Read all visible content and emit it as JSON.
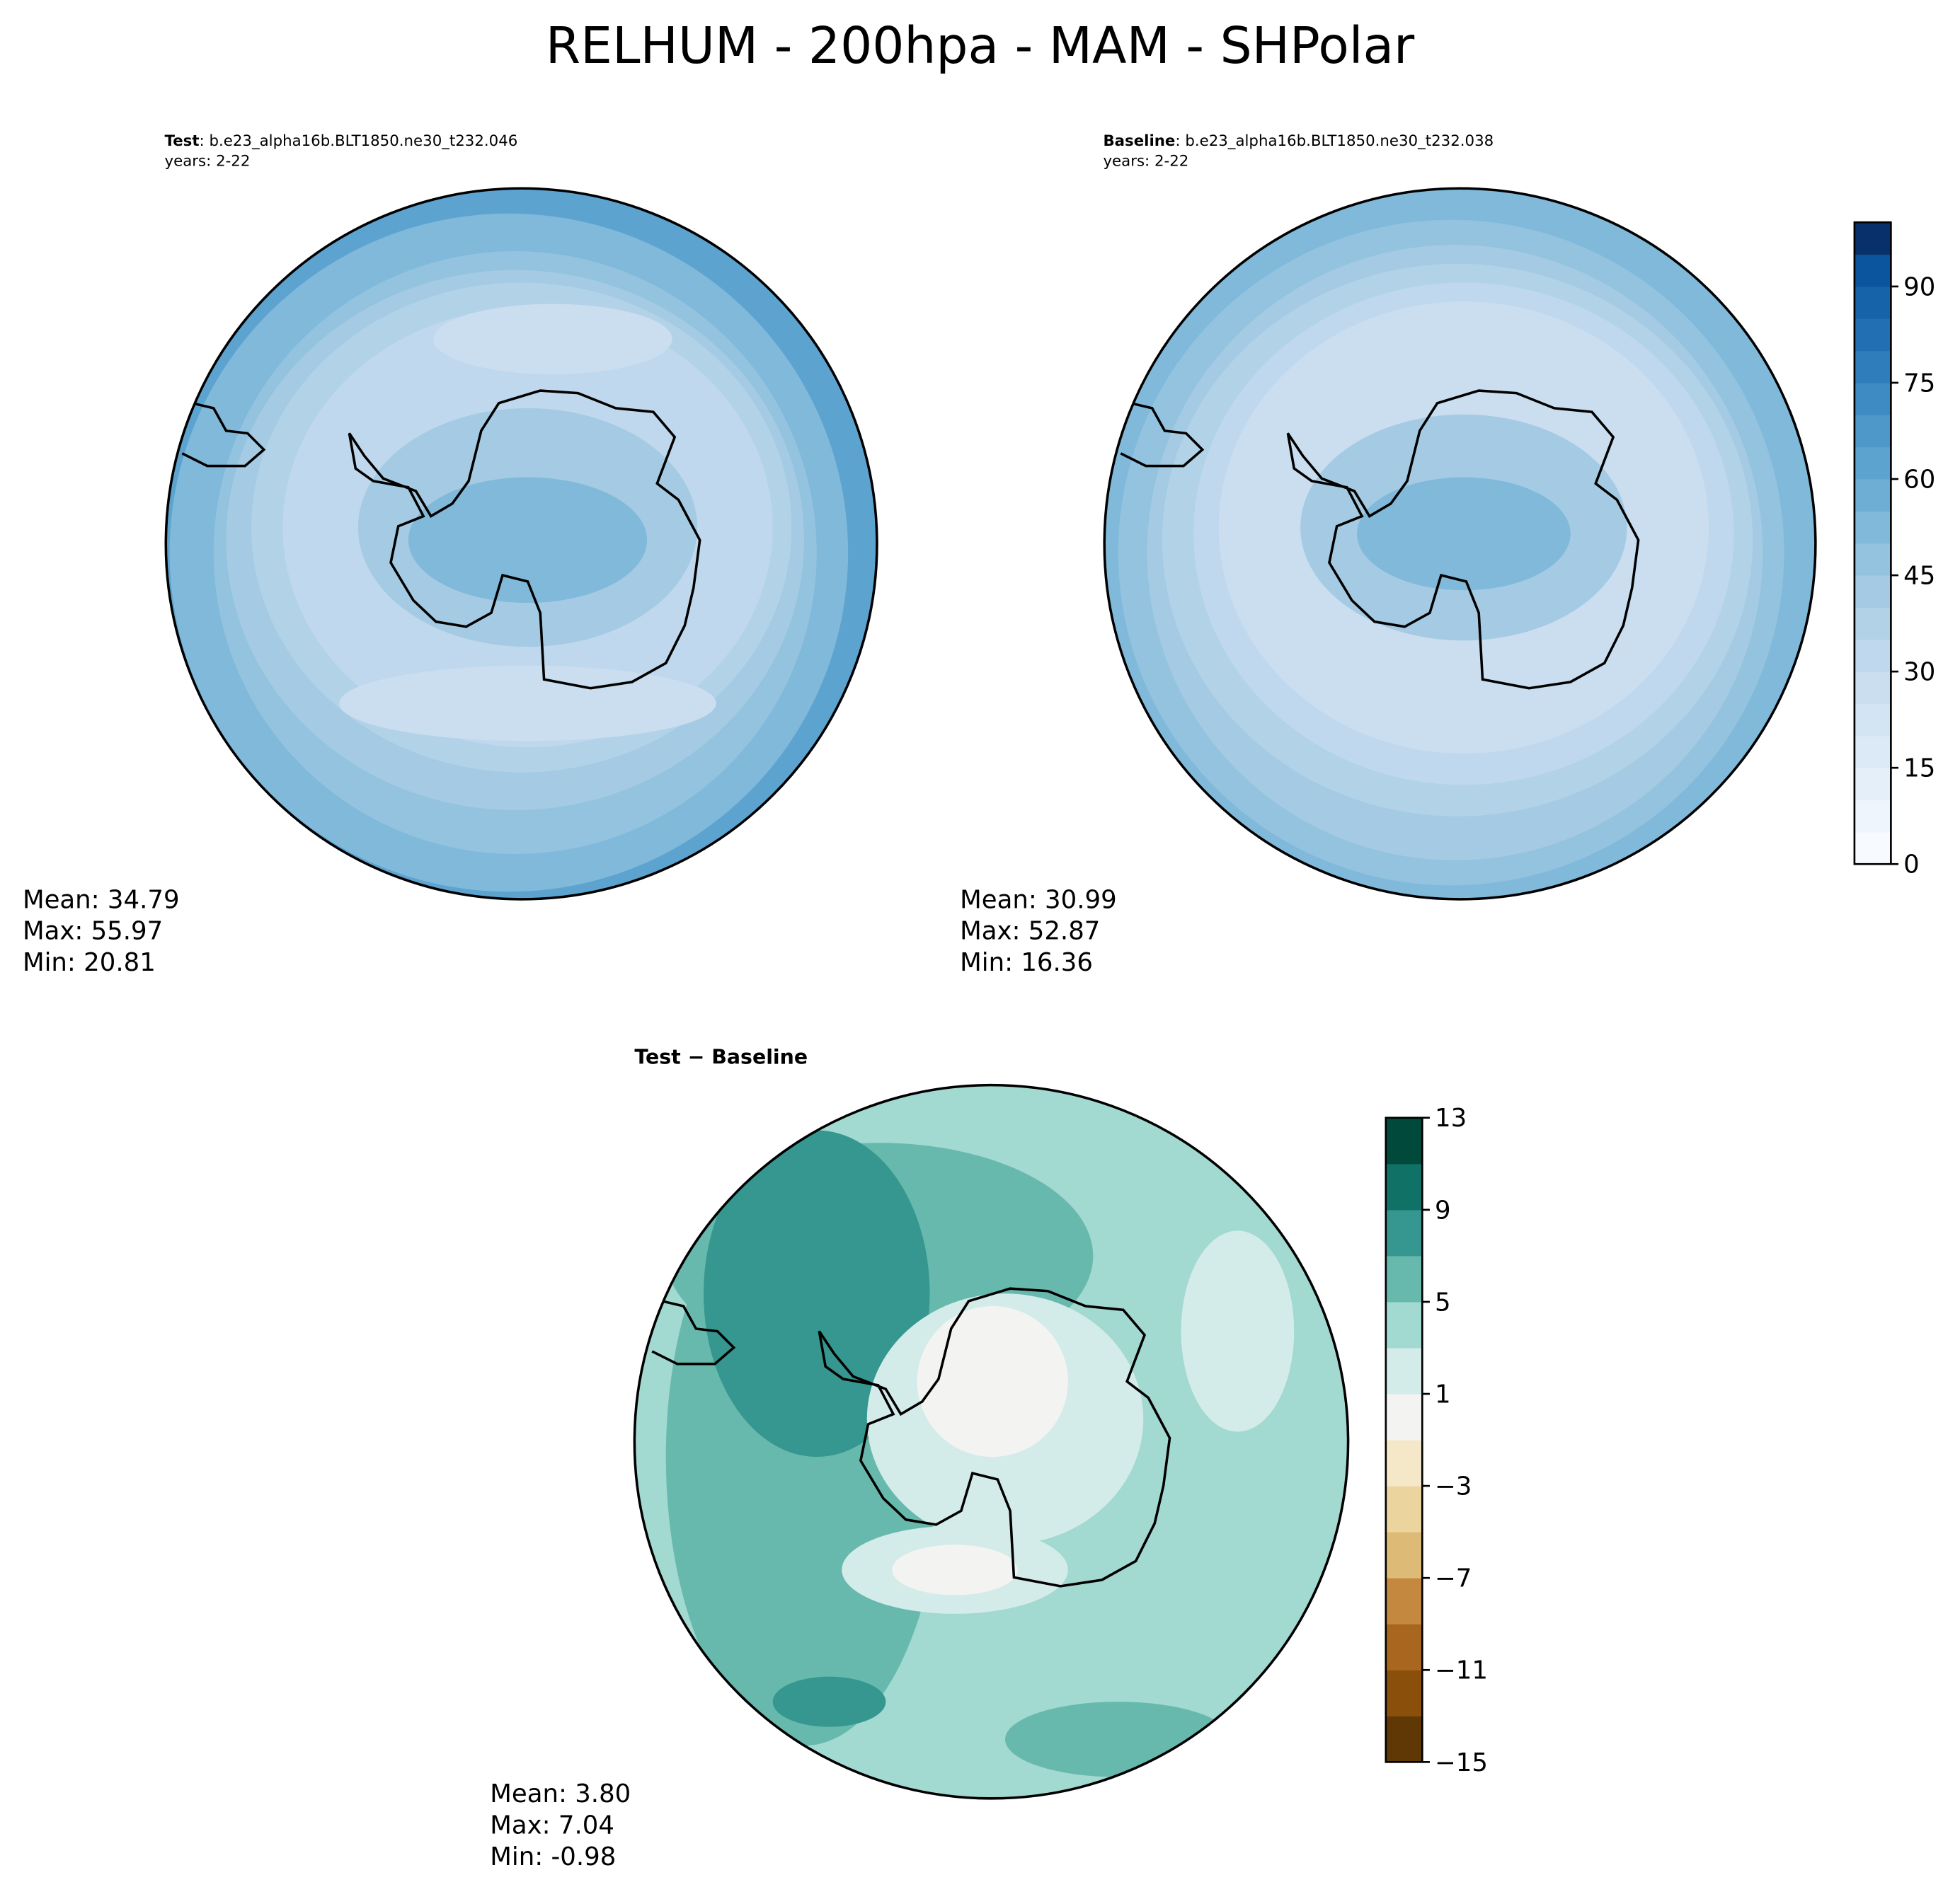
{
  "title": "RELHUM - 200hpa - MAM - SHPolar",
  "panels": [
    {
      "label": "Test",
      "case": ": b.e23_alpha16b.BLT1850.ne30_t232.046",
      "years": "years: 2-22",
      "stats": [
        "Mean: 34.79",
        "Max: 55.97",
        "Min: 20.81"
      ]
    },
    {
      "label": "Baseline",
      "case": ": b.e23_alpha16b.BLT1850.ne30_t232.038",
      "years": "years: 2-22",
      "stats": [
        "Mean: 30.99",
        "Max: 52.87",
        "Min: 16.36"
      ]
    },
    {
      "label": "Test − Baseline",
      "stats": [
        "Mean:  3.80",
        "Max:  7.04",
        "Min: -0.98"
      ]
    }
  ],
  "colorbars": [
    {
      "range": [
        0,
        100
      ],
      "ticks": [
        0,
        15,
        30,
        45,
        60,
        75,
        90
      ],
      "colors": [
        "#f7fbff",
        "#eef5fc",
        "#e5eff9",
        "#dce9f6",
        "#d3e4f3",
        "#cadef0",
        "#bfd8ed",
        "#b2d2e8",
        "#a4cbe3",
        "#93c3df",
        "#80b9da",
        "#6eaed5",
        "#5da3d0",
        "#4d97c9",
        "#3e8ac2",
        "#2f7dbb",
        "#2270b3",
        "#1663aa",
        "#0b559f",
        "#08306b"
      ]
    },
    {
      "range": [
        -15,
        13
      ],
      "ticks": [
        13,
        9,
        5,
        1,
        {
          "value": -3,
          "label": "−3"
        },
        {
          "value": -7,
          "label": "−7"
        },
        {
          "value": -11,
          "label": "−11"
        },
        {
          "value": -15,
          "label": "−15"
        }
      ],
      "colors": [
        "#5f3805",
        "#8a500b",
        "#a9661e",
        "#c4883f",
        "#ddbb76",
        "#ecd49f",
        "#f4e8c8",
        "#f3f4f2",
        "#d4ece9",
        "#a2d9d1",
        "#68b9ad",
        "#35978f",
        "#107266",
        "#01493b"
      ]
    }
  ]
}
